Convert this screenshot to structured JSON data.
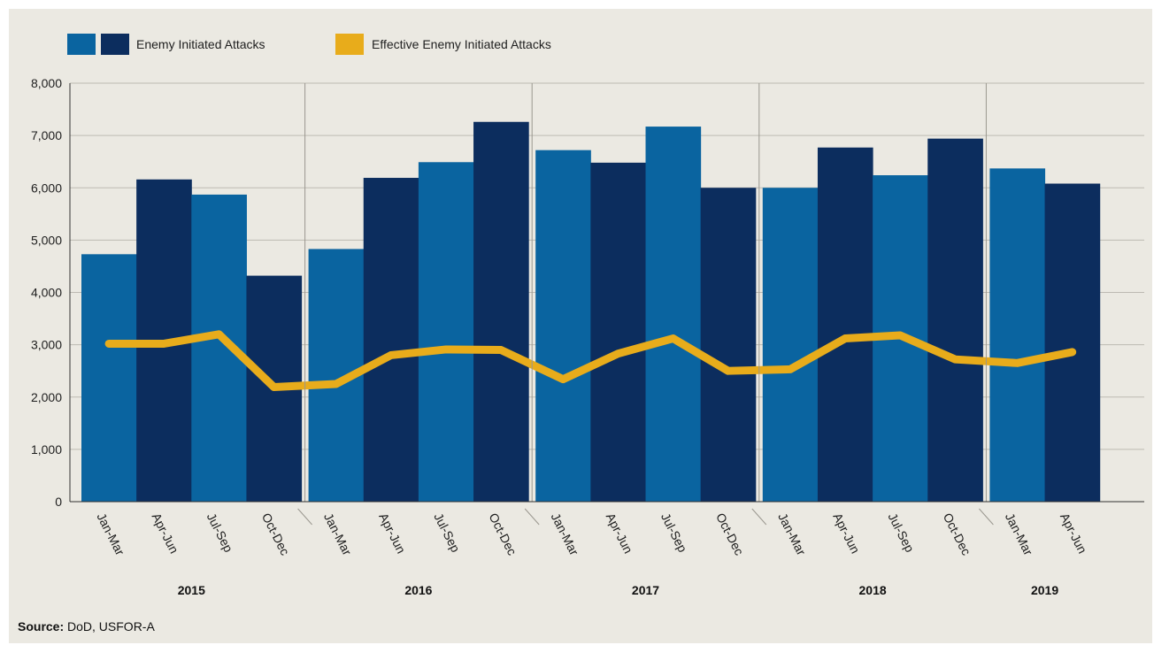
{
  "chart_data": {
    "type": "bar",
    "title": "",
    "xlabel": "",
    "ylabel": "",
    "ylim": [
      0,
      8000
    ],
    "yticks": [
      "0",
      "1,000",
      "2,000",
      "3,000",
      "4,000",
      "5,000",
      "6,000",
      "7,000",
      "8,000"
    ],
    "grid": true,
    "legend_position": "top-left",
    "groups": [
      {
        "year": "2015",
        "quarters": [
          "Jan-Mar",
          "Apr-Jun",
          "Jul-Sep",
          "Oct-Dec"
        ]
      },
      {
        "year": "2016",
        "quarters": [
          "Jan-Mar",
          "Apr-Jun",
          "Jul-Sep",
          "Oct-Dec"
        ]
      },
      {
        "year": "2017",
        "quarters": [
          "Jan-Mar",
          "Apr-Jun",
          "Jul-Sep",
          "Oct-Dec"
        ]
      },
      {
        "year": "2018",
        "quarters": [
          "Jan-Mar",
          "Apr-Jun",
          "Jul-Sep",
          "Oct-Dec"
        ]
      },
      {
        "year": "2019",
        "quarters": [
          "Jan-Mar",
          "Apr-Jun"
        ]
      }
    ],
    "series": [
      {
        "name": "Enemy Initiated Attacks",
        "type": "bar",
        "colors": [
          "#0a64a0",
          "#0c2d5e"
        ],
        "values": [
          4730,
          6160,
          5870,
          4320,
          4830,
          6190,
          6490,
          7260,
          6720,
          6480,
          7170,
          6000,
          6000,
          6770,
          6240,
          6940,
          6370,
          6080
        ]
      },
      {
        "name": "Effective Enemy Initiated Attacks",
        "type": "line",
        "color": "#e8ac1b",
        "values": [
          3020,
          3020,
          3200,
          2190,
          2250,
          2800,
          2910,
          2900,
          2340,
          2830,
          3120,
          2500,
          2530,
          3120,
          3180,
          2720,
          2650,
          2860
        ]
      }
    ],
    "source": {
      "label": "Source:",
      "text": "DoD, USFOR-A"
    }
  }
}
